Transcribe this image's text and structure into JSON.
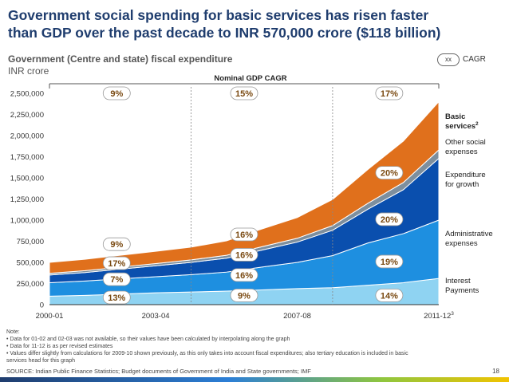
{
  "header": {
    "title_line1": "Government social spending for basic services has risen faster",
    "title_line2": "than GDP over the past decade to INR 570,000 crore ($118 billion)",
    "subtitle": "Government (Centre and state) fiscal expenditure",
    "unit": "INR crore"
  },
  "legend": {
    "symbol": "xx",
    "label": "CAGR"
  },
  "colors": {
    "interest": "#8fd3f2",
    "administrative": "#1e8fe0",
    "growth": "#0a4fae",
    "other_social": "#7d8f9e",
    "basic": "#e0701c",
    "badge_fill": "#ffffff",
    "badge_text": "#7a4a12"
  },
  "chart_data": {
    "type": "area",
    "x_labels": [
      "2000-01",
      "2003-04",
      "2007-08",
      "2011-12"
    ],
    "x_label_suffixes": [
      "",
      "",
      "",
      "3"
    ],
    "ylim": [
      0,
      2500000
    ],
    "yticks": [
      0,
      250000,
      500000,
      750000,
      1000000,
      1250000,
      1500000,
      1750000,
      2000000,
      2250000,
      2500000
    ],
    "ytick_labels": [
      "0",
      "250,000",
      "500,000",
      "750,000",
      "1,000,000",
      "1,250,000",
      "1,500,000",
      "1,750,000",
      "2,000,000",
      "2,250,000",
      "2,500,000"
    ],
    "x": [
      2000,
      2001,
      2002,
      2003,
      2004,
      2005,
      2006,
      2007,
      2008,
      2009,
      2010,
      2011
    ],
    "series": [
      {
        "name": "Interest Payments",
        "key": "interest",
        "values": [
          100000,
          110000,
          125000,
          140000,
          150000,
          160000,
          175000,
          190000,
          200000,
          230000,
          260000,
          310000
        ]
      },
      {
        "name": "Administrative expenses",
        "key": "administrative",
        "values": [
          160000,
          170000,
          180000,
          190000,
          205000,
          225000,
          270000,
          310000,
          380000,
          500000,
          580000,
          690000
        ]
      },
      {
        "name": "Expenditure for growth",
        "key": "growth",
        "values": [
          90000,
          100000,
          115000,
          130000,
          145000,
          165000,
          200000,
          240000,
          300000,
          400000,
          520000,
          730000
        ]
      },
      {
        "name": "Other social expenses",
        "key": "other_social",
        "values": [
          20000,
          22000,
          24000,
          26000,
          30000,
          34000,
          40000,
          45000,
          55000,
          70000,
          85000,
          100000
        ]
      },
      {
        "name": "Basic services",
        "name_suffix": "2",
        "key": "basic",
        "values": [
          130000,
          135000,
          140000,
          145000,
          150000,
          170000,
          210000,
          245000,
          310000,
          400000,
          490000,
          570000
        ]
      }
    ],
    "gdp_line_label": "Nominal GDP CAGR",
    "gdp_cagr": [
      {
        "label": "9%",
        "x": 2001.9,
        "y": 2500000
      },
      {
        "label": "15%",
        "x": 2005.5,
        "y": 2500000
      },
      {
        "label": "17%",
        "x": 2009.6,
        "y": 2500000
      }
    ],
    "cagr_badges": [
      {
        "label": "13%",
        "x": 2001.9,
        "y": 85000
      },
      {
        "label": "7%",
        "x": 2001.9,
        "y": 300000
      },
      {
        "label": "17%",
        "x": 2001.9,
        "y": 490000
      },
      {
        "label": "9%",
        "x": 2001.9,
        "y": 715000
      },
      {
        "label": "9%",
        "x": 2005.5,
        "y": 110000
      },
      {
        "label": "16%",
        "x": 2005.5,
        "y": 350000
      },
      {
        "label": "16%",
        "x": 2005.5,
        "y": 590000
      },
      {
        "label": "16%",
        "x": 2005.5,
        "y": 830000
      },
      {
        "label": "14%",
        "x": 2009.6,
        "y": 110000
      },
      {
        "label": "19%",
        "x": 2009.6,
        "y": 510000
      },
      {
        "label": "20%",
        "x": 2009.6,
        "y": 1010000
      },
      {
        "label": "20%",
        "x": 2009.6,
        "y": 1560000
      }
    ],
    "dividers": [
      2004,
      2008
    ]
  },
  "notes": {
    "heading": "Note:",
    "lines": [
      "• Data for 01-02 and 02-03 was not available, so their values have been calculated by interpolating along the graph",
      "• Data for 11-12 is as per revised estimates",
      "• Values differ slightly from calculations for 2009-10 shown previously, as this only takes into account fiscal expenditures; also tertiary education is included in basic",
      "   services head for this graph"
    ]
  },
  "source": "SOURCE: Indian Public Finance Statistics; Budget documents of Government of India and State governments; IMF",
  "page_number": "18"
}
